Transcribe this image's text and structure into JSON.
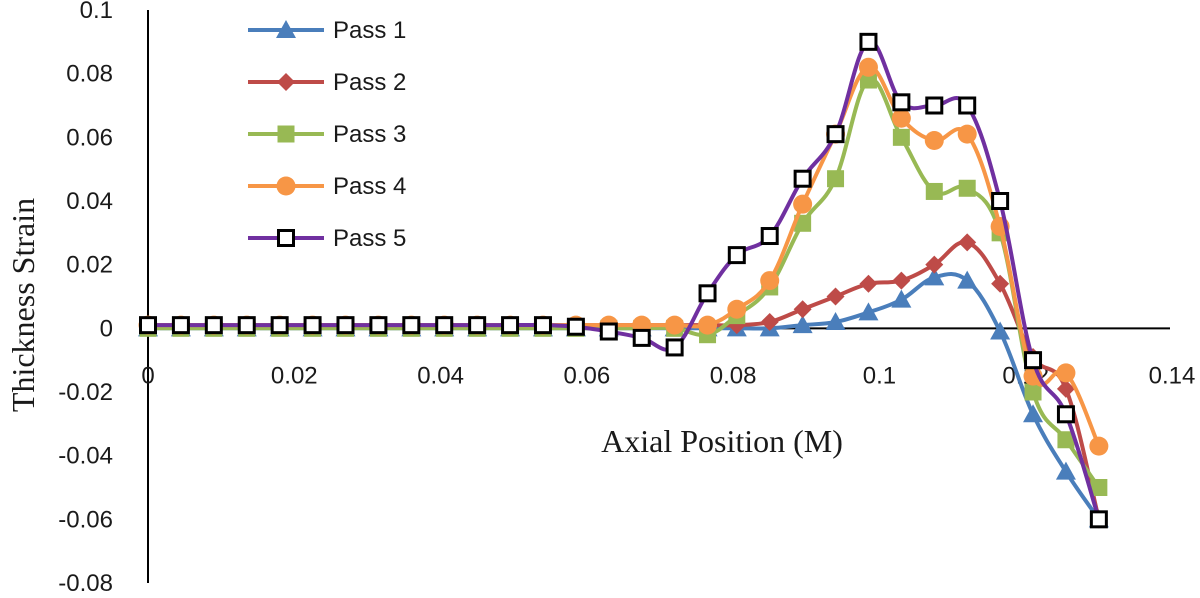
{
  "chart_data": {
    "type": "line",
    "xlabel": "Axial Position (M)",
    "ylabel": "Thickness Strain",
    "xlim": [
      0,
      0.14
    ],
    "ylim": [
      -0.08,
      0.1
    ],
    "x_ticks": [
      "0",
      "0.02",
      "0.04",
      "0.06",
      "0.08",
      "0.1",
      "0.12",
      "0.14"
    ],
    "y_ticks": [
      "0.1",
      "0.08",
      "0.06",
      "0.04",
      "0.02",
      "0",
      "-0.02",
      "-0.04",
      "-0.06",
      "-0.08"
    ],
    "grid": false,
    "legend_position": "top-left",
    "series": [
      {
        "name": "Pass 1",
        "color": "#4a7ebb",
        "marker": "triangle",
        "points": [
          [
            0,
            0
          ],
          [
            0.0045,
            0
          ],
          [
            0.009,
            0
          ],
          [
            0.0135,
            0
          ],
          [
            0.018,
            0
          ],
          [
            0.0225,
            0
          ],
          [
            0.027,
            0
          ],
          [
            0.0315,
            0
          ],
          [
            0.036,
            0
          ],
          [
            0.0405,
            0
          ],
          [
            0.045,
            0
          ],
          [
            0.0495,
            0
          ],
          [
            0.054,
            0
          ],
          [
            0.0585,
            0
          ],
          [
            0.063,
            0
          ],
          [
            0.0675,
            0
          ],
          [
            0.072,
            0
          ],
          [
            0.0765,
            0
          ],
          [
            0.0805,
            0
          ],
          [
            0.085,
            0
          ],
          [
            0.0895,
            0.001
          ],
          [
            0.094,
            0.002
          ],
          [
            0.0985,
            0.005
          ],
          [
            0.103,
            0.009
          ],
          [
            0.1075,
            0.016
          ],
          [
            0.112,
            0.015
          ],
          [
            0.1165,
            -0.001
          ],
          [
            0.121,
            -0.027
          ],
          [
            0.1255,
            -0.045
          ],
          [
            0.13,
            -0.06
          ]
        ]
      },
      {
        "name": "Pass 2",
        "color": "#be4b48",
        "marker": "diamond",
        "points": [
          [
            0,
            0.001
          ],
          [
            0.0045,
            0.001
          ],
          [
            0.009,
            0.001
          ],
          [
            0.0135,
            0.001
          ],
          [
            0.018,
            0.001
          ],
          [
            0.0225,
            0.001
          ],
          [
            0.027,
            0.001
          ],
          [
            0.0315,
            0.001
          ],
          [
            0.036,
            0.001
          ],
          [
            0.0405,
            0.001
          ],
          [
            0.045,
            0.001
          ],
          [
            0.0495,
            0.001
          ],
          [
            0.054,
            0.001
          ],
          [
            0.0585,
            0.001
          ],
          [
            0.063,
            0.001
          ],
          [
            0.0675,
            0.001
          ],
          [
            0.072,
            0.001
          ],
          [
            0.0765,
            0.001
          ],
          [
            0.0805,
            0.001
          ],
          [
            0.085,
            0.002
          ],
          [
            0.0895,
            0.006
          ],
          [
            0.094,
            0.01
          ],
          [
            0.0985,
            0.014
          ],
          [
            0.103,
            0.015
          ],
          [
            0.1075,
            0.02
          ],
          [
            0.112,
            0.027
          ],
          [
            0.1165,
            0.014
          ],
          [
            0.121,
            -0.009
          ],
          [
            0.1255,
            -0.019
          ],
          [
            0.13,
            -0.06
          ]
        ]
      },
      {
        "name": "Pass 3",
        "color": "#98b954",
        "marker": "square",
        "points": [
          [
            0,
            0
          ],
          [
            0.0045,
            0
          ],
          [
            0.009,
            0
          ],
          [
            0.0135,
            0
          ],
          [
            0.018,
            0
          ],
          [
            0.0225,
            0
          ],
          [
            0.027,
            0
          ],
          [
            0.0315,
            0
          ],
          [
            0.036,
            0
          ],
          [
            0.0405,
            0
          ],
          [
            0.045,
            0
          ],
          [
            0.0495,
            0
          ],
          [
            0.054,
            0
          ],
          [
            0.0585,
            0
          ],
          [
            0.063,
            0
          ],
          [
            0.0675,
            0
          ],
          [
            0.072,
            0
          ],
          [
            0.0765,
            -0.002
          ],
          [
            0.0805,
            0.004
          ],
          [
            0.085,
            0.013
          ],
          [
            0.0895,
            0.033
          ],
          [
            0.094,
            0.047
          ],
          [
            0.0985,
            0.078
          ],
          [
            0.103,
            0.06
          ],
          [
            0.1075,
            0.043
          ],
          [
            0.112,
            0.044
          ],
          [
            0.1165,
            0.03
          ],
          [
            0.121,
            -0.02
          ],
          [
            0.1255,
            -0.035
          ],
          [
            0.13,
            -0.05
          ]
        ]
      },
      {
        "name": "Pass 4",
        "color": "#f79646",
        "marker": "circle",
        "points": [
          [
            0,
            0.001
          ],
          [
            0.0045,
            0.001
          ],
          [
            0.009,
            0.001
          ],
          [
            0.0135,
            0.001
          ],
          [
            0.018,
            0.001
          ],
          [
            0.0225,
            0.001
          ],
          [
            0.027,
            0.001
          ],
          [
            0.0315,
            0.001
          ],
          [
            0.036,
            0.001
          ],
          [
            0.0405,
            0.001
          ],
          [
            0.045,
            0.001
          ],
          [
            0.0495,
            0.001
          ],
          [
            0.054,
            0.001
          ],
          [
            0.0585,
            0.001
          ],
          [
            0.063,
            0.001
          ],
          [
            0.0675,
            0.001
          ],
          [
            0.072,
            0.001
          ],
          [
            0.0765,
            0.001
          ],
          [
            0.0805,
            0.006
          ],
          [
            0.085,
            0.015
          ],
          [
            0.0895,
            0.039
          ],
          [
            0.094,
            0.061
          ],
          [
            0.0985,
            0.082
          ],
          [
            0.103,
            0.066
          ],
          [
            0.1075,
            0.059
          ],
          [
            0.112,
            0.061
          ],
          [
            0.1165,
            0.032
          ],
          [
            0.121,
            -0.015
          ],
          [
            0.1255,
            -0.014
          ],
          [
            0.13,
            -0.037
          ]
        ]
      },
      {
        "name": "Pass 5",
        "color": "#7030a0",
        "marker": "open-square",
        "points": [
          [
            0,
            0.001
          ],
          [
            0.0045,
            0.001
          ],
          [
            0.009,
            0.001
          ],
          [
            0.0135,
            0.001
          ],
          [
            0.018,
            0.001
          ],
          [
            0.0225,
            0.001
          ],
          [
            0.027,
            0.001
          ],
          [
            0.0315,
            0.001
          ],
          [
            0.036,
            0.001
          ],
          [
            0.0405,
            0.001
          ],
          [
            0.045,
            0.001
          ],
          [
            0.0495,
            0.001
          ],
          [
            0.054,
            0.001
          ],
          [
            0.0585,
            0.0005
          ],
          [
            0.063,
            -0.001
          ],
          [
            0.0675,
            -0.003
          ],
          [
            0.072,
            -0.006
          ],
          [
            0.0765,
            0.011
          ],
          [
            0.0805,
            0.023
          ],
          [
            0.085,
            0.029
          ],
          [
            0.0895,
            0.047
          ],
          [
            0.094,
            0.061
          ],
          [
            0.0985,
            0.09
          ],
          [
            0.103,
            0.071
          ],
          [
            0.1075,
            0.07
          ],
          [
            0.112,
            0.07
          ],
          [
            0.1165,
            0.04
          ],
          [
            0.121,
            -0.01
          ],
          [
            0.1255,
            -0.027
          ],
          [
            0.13,
            -0.06
          ]
        ]
      }
    ]
  }
}
